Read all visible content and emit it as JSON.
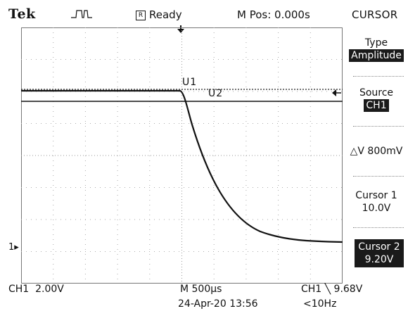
{
  "header": {
    "brand": "Tek",
    "trigger_icon": "pulse-waveform-icon",
    "run_indicator": "R",
    "acquisition_status": "Ready",
    "main_position": "M Pos: 0.000s",
    "menu_title": "CURSOR"
  },
  "cursors": {
    "u1_label": "U1",
    "u2_label": "U2"
  },
  "channel": {
    "marker": "1"
  },
  "side_menu": {
    "type_label": "Type",
    "type_value": "Amplitude",
    "source_label": "Source",
    "source_value": "CH1",
    "delta_v": "△V 800mV",
    "cursor1_label": "Cursor 1",
    "cursor1_value": "10.0V",
    "cursor2_label": "Cursor 2",
    "cursor2_value": "9.20V"
  },
  "footer": {
    "ch1_scale": "CH1  2.00V",
    "timebase": "M 500µs",
    "trigger": "CH1 ╲ 9.68V",
    "datetime": "24-Apr-20 13:56",
    "frequency": "<10Hz"
  }
}
